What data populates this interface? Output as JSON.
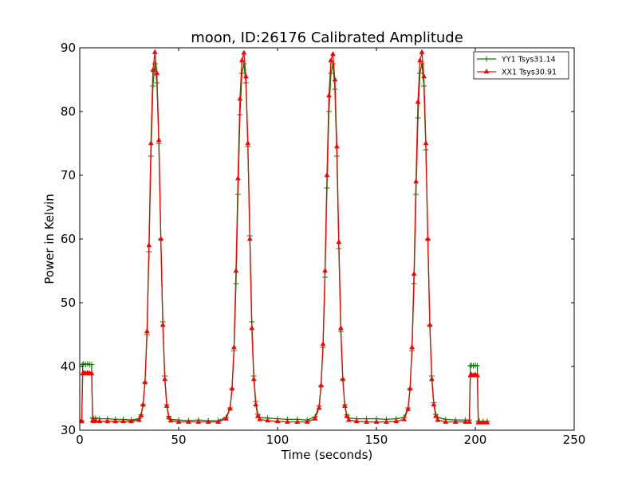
{
  "chart_data": {
    "type": "line",
    "title": "moon, ID:26176 Calibrated Amplitude",
    "xlabel": "Time (seconds)",
    "ylabel": "Power in Kelvin",
    "xlim": [
      0,
      250
    ],
    "ylim": [
      30,
      90
    ],
    "xticks": [
      0,
      50,
      100,
      150,
      200,
      250
    ],
    "yticks": [
      30,
      40,
      50,
      60,
      70,
      80,
      90
    ],
    "xtick_labels": [
      "0",
      "50",
      "100",
      "150",
      "200",
      "250"
    ],
    "ytick_labels": [
      "30",
      "40",
      "50",
      "60",
      "70",
      "80",
      "90"
    ],
    "grid": false,
    "legend_position": "top-right",
    "series": [
      {
        "name": "YY1 Tsys31.14",
        "color": "#008000",
        "marker": "plus",
        "x": [
          0,
          1,
          1.5,
          2,
          3,
          4,
          5,
          6,
          6.5,
          7,
          8,
          10,
          14,
          18,
          22,
          26,
          30,
          31,
          32,
          33,
          34,
          35,
          36,
          37,
          38,
          39,
          40,
          41,
          42,
          43,
          44,
          45,
          46,
          50,
          55,
          60,
          65,
          70,
          74,
          76,
          77,
          78,
          79,
          80,
          81,
          82,
          83,
          84,
          85,
          86,
          87,
          88,
          89,
          90,
          91,
          95,
          100,
          105,
          110,
          115,
          119,
          121,
          122,
          123,
          124,
          125,
          126,
          127,
          128,
          129,
          130,
          131,
          132,
          133,
          134,
          135,
          136,
          140,
          145,
          150,
          155,
          160,
          164,
          166,
          167,
          168,
          169,
          170,
          171,
          172,
          173,
          174,
          175,
          176,
          177,
          178,
          179,
          180,
          181,
          185,
          190,
          195,
          197,
          197.5,
          198,
          199,
          200,
          201,
          201.5,
          202,
          204,
          206
        ],
        "y": [
          31.5,
          31.5,
          40.3,
          40.4,
          40.3,
          40.4,
          40.3,
          40.3,
          31.9,
          31.8,
          31.9,
          31.8,
          31.8,
          31.7,
          31.7,
          31.6,
          31.8,
          32.4,
          34.0,
          37.5,
          45.0,
          58.0,
          73.0,
          84.0,
          87.5,
          84.5,
          75.0,
          60.0,
          47.0,
          38.5,
          34.0,
          32.2,
          31.7,
          31.6,
          31.5,
          31.6,
          31.5,
          31.5,
          32.0,
          33.5,
          36.5,
          42.5,
          53.0,
          67.0,
          79.5,
          86.0,
          87.5,
          84.5,
          74.5,
          60.5,
          47.0,
          38.5,
          34.5,
          32.5,
          32.0,
          31.9,
          31.8,
          31.7,
          31.7,
          31.6,
          32.1,
          33.8,
          37.0,
          43.0,
          54.0,
          68.0,
          80.0,
          86.0,
          87.5,
          83.5,
          73.0,
          58.5,
          45.5,
          38.0,
          34.0,
          32.4,
          31.9,
          31.8,
          31.8,
          31.8,
          31.7,
          31.8,
          32.0,
          33.5,
          36.5,
          42.5,
          53.0,
          67.0,
          79.0,
          86.0,
          87.5,
          84.0,
          74.0,
          60.0,
          46.5,
          38.5,
          34.3,
          32.5,
          32.0,
          31.7,
          31.6,
          31.6,
          31.6,
          40.1,
          40.2,
          40.1,
          40.2,
          40.1,
          31.4,
          31.4,
          31.4,
          31.4
        ]
      },
      {
        "name": "XX1 Tsys30.91",
        "color": "#ff0000",
        "marker": "tri",
        "x": [
          0,
          1,
          1.5,
          2,
          3,
          4,
          5,
          6,
          6.5,
          7,
          8,
          10,
          14,
          18,
          22,
          26,
          30,
          31,
          32,
          33,
          34,
          35,
          36,
          37,
          38,
          39,
          40,
          41,
          42,
          43,
          44,
          45,
          46,
          50,
          55,
          60,
          65,
          70,
          74,
          76,
          77,
          78,
          79,
          80,
          81,
          82,
          83,
          84,
          85,
          86,
          87,
          88,
          89,
          90,
          91,
          95,
          100,
          105,
          110,
          115,
          119,
          121,
          122,
          123,
          124,
          125,
          126,
          127,
          128,
          129,
          130,
          131,
          132,
          133,
          134,
          135,
          136,
          140,
          145,
          150,
          155,
          160,
          164,
          166,
          167,
          168,
          169,
          170,
          171,
          172,
          173,
          174,
          175,
          176,
          177,
          178,
          179,
          180,
          181,
          185,
          190,
          195,
          197,
          197.5,
          198,
          199,
          200,
          201,
          201.5,
          202,
          204,
          206
        ],
        "y": [
          31.4,
          31.4,
          38.9,
          39.0,
          38.9,
          39.0,
          38.9,
          38.9,
          31.5,
          31.4,
          31.5,
          31.4,
          31.4,
          31.4,
          31.4,
          31.4,
          31.6,
          32.3,
          34.0,
          37.5,
          45.5,
          59.0,
          75.0,
          86.5,
          89.3,
          86.0,
          75.5,
          60.0,
          46.5,
          38.0,
          33.8,
          32.0,
          31.5,
          31.3,
          31.3,
          31.3,
          31.3,
          31.3,
          31.8,
          33.4,
          36.5,
          43.0,
          55.0,
          69.5,
          82.0,
          88.0,
          89.2,
          85.5,
          75.0,
          60.0,
          46.0,
          38.0,
          34.0,
          32.2,
          31.7,
          31.5,
          31.4,
          31.3,
          31.3,
          31.3,
          31.8,
          33.5,
          37.0,
          43.5,
          55.0,
          70.0,
          82.5,
          88.0,
          89.0,
          85.0,
          74.5,
          59.5,
          46.0,
          38.0,
          33.8,
          32.2,
          31.6,
          31.4,
          31.3,
          31.3,
          31.3,
          31.4,
          31.7,
          33.3,
          36.5,
          43.0,
          54.5,
          69.0,
          81.5,
          88.0,
          89.3,
          85.5,
          75.0,
          60.0,
          46.5,
          38.0,
          34.0,
          32.2,
          31.6,
          31.3,
          31.3,
          31.3,
          31.3,
          38.6,
          38.7,
          38.6,
          38.7,
          38.6,
          31.2,
          31.2,
          31.2,
          31.2
        ]
      }
    ]
  }
}
